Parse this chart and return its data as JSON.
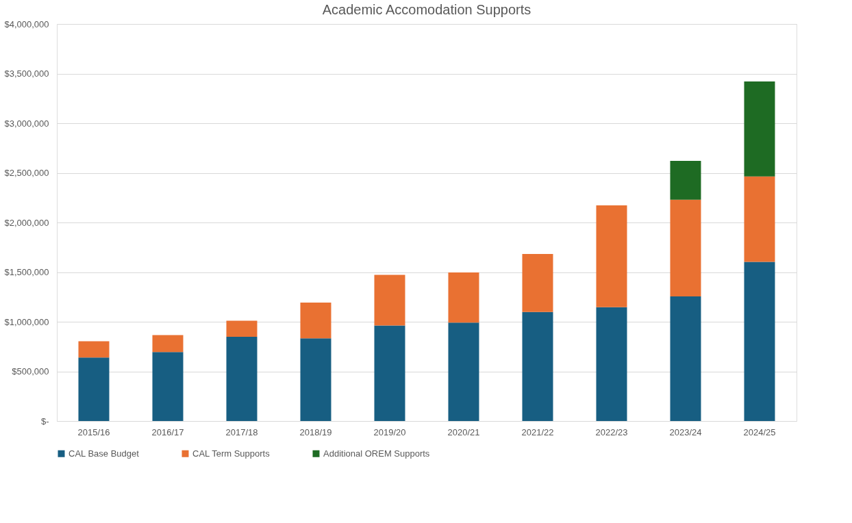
{
  "chart_data": {
    "type": "bar",
    "title": "Academic Accomodation Supports",
    "stacked": true,
    "categories": [
      "2015/16",
      "2016/17",
      "2017/18",
      "2018/19",
      "2019/20",
      "2020/21",
      "2021/22",
      "2022/23",
      "2023/24",
      "2024/25"
    ],
    "series": [
      {
        "name": "CAL Base Budget",
        "color": "#175e82",
        "values": [
          640000,
          695000,
          848000,
          832000,
          962000,
          991000,
          1099000,
          1147000,
          1255000,
          1604000
        ]
      },
      {
        "name": "CAL Term Supports",
        "color": "#e97132",
        "values": [
          164000,
          170000,
          162000,
          361000,
          511000,
          505000,
          584000,
          1025000,
          974000,
          860000
        ]
      },
      {
        "name": "Additional OREM Supports",
        "color": "#1e6b23",
        "values": [
          null,
          null,
          null,
          null,
          null,
          null,
          null,
          null,
          391000,
          957000
        ]
      }
    ],
    "ylim": [
      0,
      4000000
    ],
    "yticks": [
      {
        "value": 0,
        "label": "$-"
      },
      {
        "value": 500000,
        "label": "$500,000"
      },
      {
        "value": 1000000,
        "label": "$1,000,000"
      },
      {
        "value": 1500000,
        "label": "$1,500,000"
      },
      {
        "value": 2000000,
        "label": "$2,000,000"
      },
      {
        "value": 2500000,
        "label": "$2,500,000"
      },
      {
        "value": 3000000,
        "label": "$3,000,000"
      },
      {
        "value": 3500000,
        "label": "$3,500,000"
      },
      {
        "value": 4000000,
        "label": "$4,000,000"
      }
    ],
    "grid": "y",
    "legend": "bottom"
  }
}
